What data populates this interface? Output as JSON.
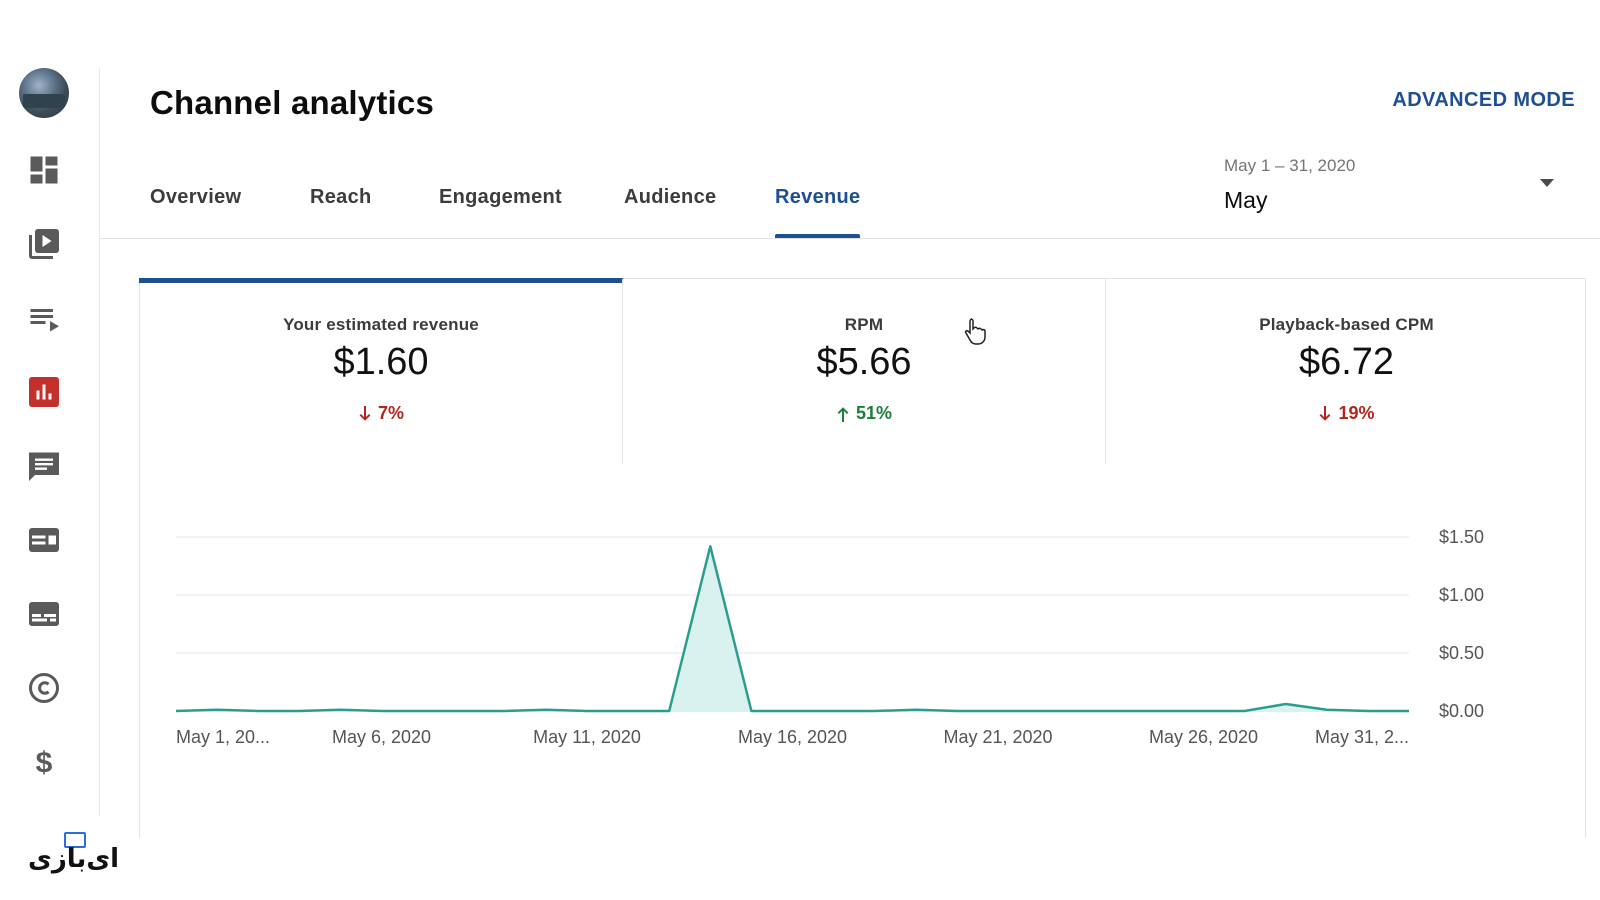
{
  "header": {
    "title": "Channel analytics",
    "advanced_mode_label": "ADVANCED MODE"
  },
  "tabs": [
    {
      "label": "Overview",
      "active": false
    },
    {
      "label": "Reach",
      "active": false
    },
    {
      "label": "Engagement",
      "active": false
    },
    {
      "label": "Audience",
      "active": false
    },
    {
      "label": "Revenue",
      "active": true
    }
  ],
  "date_picker": {
    "range": "May 1 – 31, 2020",
    "value": "May"
  },
  "sidebar": {
    "items": [
      {
        "icon": "dashboard-icon"
      },
      {
        "icon": "content-icon"
      },
      {
        "icon": "playlists-icon"
      },
      {
        "icon": "analytics-icon",
        "active": true
      },
      {
        "icon": "comments-icon"
      },
      {
        "icon": "subtitles-icon"
      },
      {
        "icon": "subtitles-alt-icon"
      },
      {
        "icon": "copyright-icon"
      },
      {
        "icon": "monetization-icon"
      }
    ]
  },
  "metrics": [
    {
      "label": "Your estimated revenue",
      "value": "$1.60",
      "change": "7%",
      "direction": "down",
      "selected": true
    },
    {
      "label": "RPM",
      "value": "$5.66",
      "change": "51%",
      "direction": "up",
      "selected": false
    },
    {
      "label": "Playback-based CPM",
      "value": "$6.72",
      "change": "19%",
      "direction": "down",
      "selected": false
    }
  ],
  "watermark": {
    "text": "ای‌بازی"
  },
  "colors": {
    "accent": "#1d4f91",
    "line": "#2a9d8f",
    "fill": "#d9f2f0",
    "down": "#b3261e",
    "up": "#1a7f37",
    "analytics_active": "#c4302b"
  },
  "chart_data": {
    "type": "area",
    "title": "",
    "xlabel": "",
    "ylabel": "",
    "ylim": [
      0,
      1.5
    ],
    "y_ticks": [
      "$0.00",
      "$0.50",
      "$1.00",
      "$1.50"
    ],
    "y_tick_values": [
      0,
      0.5,
      1.0,
      1.5
    ],
    "x_tick_labels": [
      "May 1, 20...",
      "May 6, 2020",
      "May 11, 2020",
      "May 16, 2020",
      "May 21, 2020",
      "May 26, 2020",
      "May 31, 2..."
    ],
    "x_tick_days": [
      1,
      6,
      11,
      16,
      21,
      26,
      31
    ],
    "series": [
      {
        "name": "Your estimated revenue",
        "x": [
          1,
          2,
          3,
          4,
          5,
          6,
          7,
          8,
          9,
          10,
          11,
          12,
          13,
          14,
          15,
          16,
          17,
          18,
          19,
          20,
          21,
          22,
          23,
          24,
          25,
          26,
          27,
          28,
          29,
          30,
          31
        ],
        "values": [
          0,
          0.01,
          0,
          0,
          0.01,
          0,
          0,
          0,
          0,
          0.01,
          0,
          0,
          0,
          1.42,
          0,
          0,
          0,
          0,
          0.01,
          0,
          0,
          0,
          0,
          0,
          0,
          0,
          0,
          0.06,
          0.01,
          0,
          0
        ]
      }
    ]
  }
}
